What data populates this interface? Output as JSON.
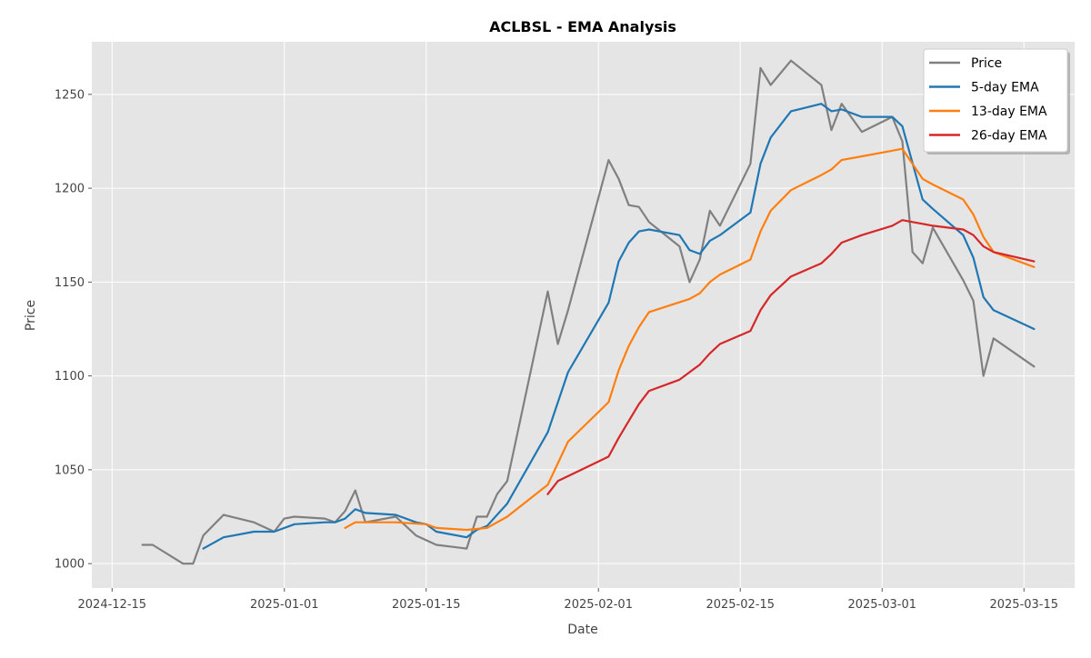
{
  "chart_data": {
    "type": "line",
    "title": "ACLBSL - EMA Analysis",
    "xlabel": "Date",
    "ylabel": "Price",
    "x_ticks": [
      "2024-12-15",
      "2025-01-01",
      "2025-01-15",
      "2025-02-01",
      "2025-02-15",
      "2025-03-01",
      "2025-03-15"
    ],
    "y_ticks": [
      1000,
      1050,
      1100,
      1150,
      1200,
      1250
    ],
    "xlim": [
      "2024-12-13",
      "2025-03-20"
    ],
    "ylim": [
      987,
      1278
    ],
    "grid": true,
    "legend_position": "top-right",
    "series": [
      {
        "name": "Price",
        "color": "#808080",
        "points": [
          [
            "2024-12-18",
            1010
          ],
          [
            "2024-12-19",
            1010
          ],
          [
            "2024-12-22",
            1000
          ],
          [
            "2024-12-23",
            1000
          ],
          [
            "2024-12-24",
            1015
          ],
          [
            "2024-12-26",
            1026
          ],
          [
            "2024-12-29",
            1022
          ],
          [
            "2024-12-31",
            1017
          ],
          [
            "2025-01-01",
            1024
          ],
          [
            "2025-01-02",
            1025
          ],
          [
            "2025-01-05",
            1024
          ],
          [
            "2025-01-06",
            1022
          ],
          [
            "2025-01-07",
            1028
          ],
          [
            "2025-01-08",
            1039
          ],
          [
            "2025-01-09",
            1022
          ],
          [
            "2025-01-12",
            1025
          ],
          [
            "2025-01-14",
            1015
          ],
          [
            "2025-01-16",
            1010
          ],
          [
            "2025-01-19",
            1008
          ],
          [
            "2025-01-20",
            1025
          ],
          [
            "2025-01-21",
            1025
          ],
          [
            "2025-01-22",
            1037
          ],
          [
            "2025-01-23",
            1044
          ],
          [
            "2025-01-27",
            1145
          ],
          [
            "2025-01-28",
            1117
          ],
          [
            "2025-01-29",
            1135
          ],
          [
            "2025-02-02",
            1215
          ],
          [
            "2025-02-03",
            1205
          ],
          [
            "2025-02-04",
            1191
          ],
          [
            "2025-02-05",
            1190
          ],
          [
            "2025-02-06",
            1182
          ],
          [
            "2025-02-09",
            1169
          ],
          [
            "2025-02-10",
            1150
          ],
          [
            "2025-02-11",
            1162
          ],
          [
            "2025-02-12",
            1188
          ],
          [
            "2025-02-13",
            1180
          ],
          [
            "2025-02-16",
            1213
          ],
          [
            "2025-02-17",
            1264
          ],
          [
            "2025-02-18",
            1255
          ],
          [
            "2025-02-20",
            1268
          ],
          [
            "2025-02-23",
            1255
          ],
          [
            "2025-02-24",
            1231
          ],
          [
            "2025-02-25",
            1245
          ],
          [
            "2025-02-27",
            1230
          ],
          [
            "2025-03-02",
            1238
          ],
          [
            "2025-03-03",
            1225
          ],
          [
            "2025-03-04",
            1166
          ],
          [
            "2025-03-05",
            1160
          ],
          [
            "2025-03-06",
            1179
          ],
          [
            "2025-03-09",
            1151
          ],
          [
            "2025-03-10",
            1140
          ],
          [
            "2025-03-11",
            1100
          ],
          [
            "2025-03-12",
            1120
          ],
          [
            "2025-03-16",
            1105
          ]
        ]
      },
      {
        "name": "5-day EMA",
        "color": "#1f77b4",
        "points": [
          [
            "2024-12-24",
            1008
          ],
          [
            "2024-12-26",
            1014
          ],
          [
            "2024-12-29",
            1017
          ],
          [
            "2024-12-31",
            1017
          ],
          [
            "2025-01-02",
            1021
          ],
          [
            "2025-01-05",
            1022
          ],
          [
            "2025-01-06",
            1022
          ],
          [
            "2025-01-07",
            1024
          ],
          [
            "2025-01-08",
            1029
          ],
          [
            "2025-01-09",
            1027
          ],
          [
            "2025-01-12",
            1026
          ],
          [
            "2025-01-14",
            1022
          ],
          [
            "2025-01-15",
            1021
          ],
          [
            "2025-01-16",
            1017
          ],
          [
            "2025-01-19",
            1014
          ],
          [
            "2025-01-20",
            1018
          ],
          [
            "2025-01-21",
            1020
          ],
          [
            "2025-01-23",
            1032
          ],
          [
            "2025-01-27",
            1070
          ],
          [
            "2025-01-29",
            1102
          ],
          [
            "2025-02-02",
            1139
          ],
          [
            "2025-02-03",
            1161
          ],
          [
            "2025-02-04",
            1171
          ],
          [
            "2025-02-05",
            1177
          ],
          [
            "2025-02-06",
            1178
          ],
          [
            "2025-02-09",
            1175
          ],
          [
            "2025-02-10",
            1167
          ],
          [
            "2025-02-11",
            1165
          ],
          [
            "2025-02-12",
            1172
          ],
          [
            "2025-02-13",
            1175
          ],
          [
            "2025-02-16",
            1187
          ],
          [
            "2025-02-17",
            1213
          ],
          [
            "2025-02-18",
            1227
          ],
          [
            "2025-02-20",
            1241
          ],
          [
            "2025-02-23",
            1245
          ],
          [
            "2025-02-24",
            1241
          ],
          [
            "2025-02-25",
            1242
          ],
          [
            "2025-02-27",
            1238
          ],
          [
            "2025-03-02",
            1238
          ],
          [
            "2025-03-03",
            1233
          ],
          [
            "2025-03-05",
            1194
          ],
          [
            "2025-03-06",
            1189
          ],
          [
            "2025-03-09",
            1175
          ],
          [
            "2025-03-10",
            1163
          ],
          [
            "2025-03-11",
            1142
          ],
          [
            "2025-03-12",
            1135
          ],
          [
            "2025-03-16",
            1125
          ]
        ]
      },
      {
        "name": "13-day EMA",
        "color": "#ff7f0e",
        "points": [
          [
            "2025-01-07",
            1019
          ],
          [
            "2025-01-08",
            1022
          ],
          [
            "2025-01-09",
            1022
          ],
          [
            "2025-01-12",
            1022
          ],
          [
            "2025-01-15",
            1021
          ],
          [
            "2025-01-16",
            1019
          ],
          [
            "2025-01-19",
            1018
          ],
          [
            "2025-01-21",
            1019
          ],
          [
            "2025-01-23",
            1025
          ],
          [
            "2025-01-27",
            1042
          ],
          [
            "2025-01-29",
            1065
          ],
          [
            "2025-02-02",
            1086
          ],
          [
            "2025-02-03",
            1103
          ],
          [
            "2025-02-04",
            1116
          ],
          [
            "2025-02-05",
            1126
          ],
          [
            "2025-02-06",
            1134
          ],
          [
            "2025-02-10",
            1141
          ],
          [
            "2025-02-11",
            1144
          ],
          [
            "2025-02-12",
            1150
          ],
          [
            "2025-02-13",
            1154
          ],
          [
            "2025-02-16",
            1162
          ],
          [
            "2025-02-17",
            1177
          ],
          [
            "2025-02-18",
            1188
          ],
          [
            "2025-02-20",
            1199
          ],
          [
            "2025-02-23",
            1207
          ],
          [
            "2025-02-24",
            1210
          ],
          [
            "2025-02-25",
            1215
          ],
          [
            "2025-02-27",
            1217
          ],
          [
            "2025-03-02",
            1220
          ],
          [
            "2025-03-03",
            1221
          ],
          [
            "2025-03-05",
            1205
          ],
          [
            "2025-03-06",
            1202
          ],
          [
            "2025-03-09",
            1194
          ],
          [
            "2025-03-10",
            1186
          ],
          [
            "2025-03-11",
            1174
          ],
          [
            "2025-03-12",
            1166
          ],
          [
            "2025-03-16",
            1158
          ]
        ]
      },
      {
        "name": "26-day EMA",
        "color": "#d62728",
        "points": [
          [
            "2025-01-27",
            1037
          ],
          [
            "2025-01-28",
            1044
          ],
          [
            "2025-02-02",
            1057
          ],
          [
            "2025-02-03",
            1067
          ],
          [
            "2025-02-04",
            1076
          ],
          [
            "2025-02-05",
            1085
          ],
          [
            "2025-02-06",
            1092
          ],
          [
            "2025-02-09",
            1098
          ],
          [
            "2025-02-10",
            1102
          ],
          [
            "2025-02-11",
            1106
          ],
          [
            "2025-02-12",
            1112
          ],
          [
            "2025-02-13",
            1117
          ],
          [
            "2025-02-16",
            1124
          ],
          [
            "2025-02-17",
            1135
          ],
          [
            "2025-02-18",
            1143
          ],
          [
            "2025-02-20",
            1153
          ],
          [
            "2025-02-23",
            1160
          ],
          [
            "2025-02-24",
            1165
          ],
          [
            "2025-02-25",
            1171
          ],
          [
            "2025-02-27",
            1175
          ],
          [
            "2025-03-02",
            1180
          ],
          [
            "2025-03-03",
            1183
          ],
          [
            "2025-03-04",
            1182
          ],
          [
            "2025-03-05",
            1181
          ],
          [
            "2025-03-06",
            1180
          ],
          [
            "2025-03-09",
            1178
          ],
          [
            "2025-03-10",
            1175
          ],
          [
            "2025-03-11",
            1169
          ],
          [
            "2025-03-12",
            1166
          ],
          [
            "2025-03-16",
            1161
          ]
        ]
      }
    ]
  }
}
